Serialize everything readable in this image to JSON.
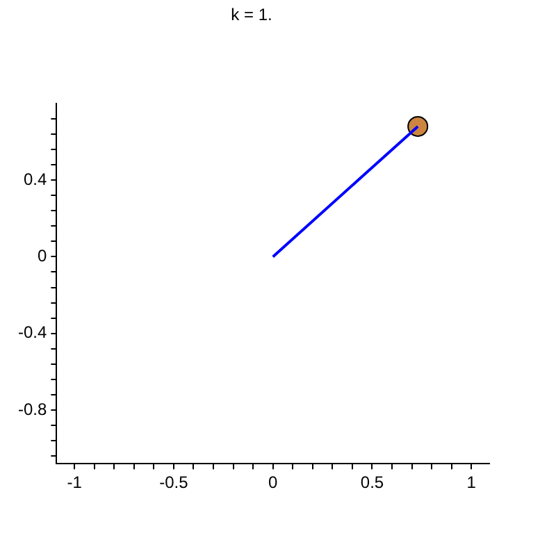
{
  "chart_data": {
    "type": "line",
    "title": "k = 1.",
    "x": [
      0,
      0.73
    ],
    "series": [
      {
        "color": "#0000ff",
        "values": [
          0,
          0.68
        ],
        "marker": "none"
      },
      {
        "type": "scatter",
        "color": "#cd853f",
        "values": [
          null,
          0.68
        ],
        "marker": "circle"
      }
    ],
    "xlim": [
      -1.09,
      1.09
    ],
    "ylim": [
      -1.08,
      0.8
    ],
    "xticks": [
      -1,
      {
        "value": -0.9,
        "label": null
      },
      {
        "value": -0.8,
        "label": null
      },
      {
        "value": -0.7,
        "label": null
      },
      {
        "value": -0.6,
        "label": null
      },
      -0.5,
      {
        "value": -0.4,
        "label": null
      },
      {
        "value": -0.3,
        "label": null
      },
      {
        "value": -0.2,
        "label": null
      },
      {
        "value": -0.1,
        "label": null
      },
      0,
      {
        "value": 0.1,
        "label": null
      },
      {
        "value": 0.2,
        "label": null
      },
      {
        "value": 0.3,
        "label": null
      },
      {
        "value": 0.4,
        "label": null
      },
      0.5,
      {
        "value": 0.6,
        "label": null
      },
      {
        "value": 0.7,
        "label": null
      },
      {
        "value": 0.8,
        "label": null
      },
      {
        "value": 0.9,
        "label": null
      },
      1
    ],
    "yticks": [
      {
        "value": -1.04,
        "label": null
      },
      {
        "value": -0.96,
        "label": null
      },
      {
        "value": -0.88,
        "label": null
      },
      -0.8,
      {
        "value": -0.72,
        "label": null
      },
      {
        "value": -0.64,
        "label": null
      },
      {
        "value": -0.56,
        "label": null
      },
      {
        "value": -0.48,
        "label": null
      },
      -0.4,
      {
        "value": -0.32,
        "label": null
      },
      {
        "value": -0.24,
        "label": null
      },
      {
        "value": -0.16,
        "label": null
      },
      {
        "value": -0.08,
        "label": null
      },
      0,
      {
        "value": 0.08,
        "label": null
      },
      {
        "value": 0.16,
        "label": null
      },
      {
        "value": 0.24,
        "label": null
      },
      {
        "value": 0.32,
        "label": null
      },
      0.4,
      {
        "value": 0.48,
        "label": null
      },
      {
        "value": 0.56,
        "label": null
      },
      {
        "value": 0.64,
        "label": null
      },
      {
        "value": 0.72,
        "label": null
      }
    ],
    "grid": false,
    "legend": false
  }
}
